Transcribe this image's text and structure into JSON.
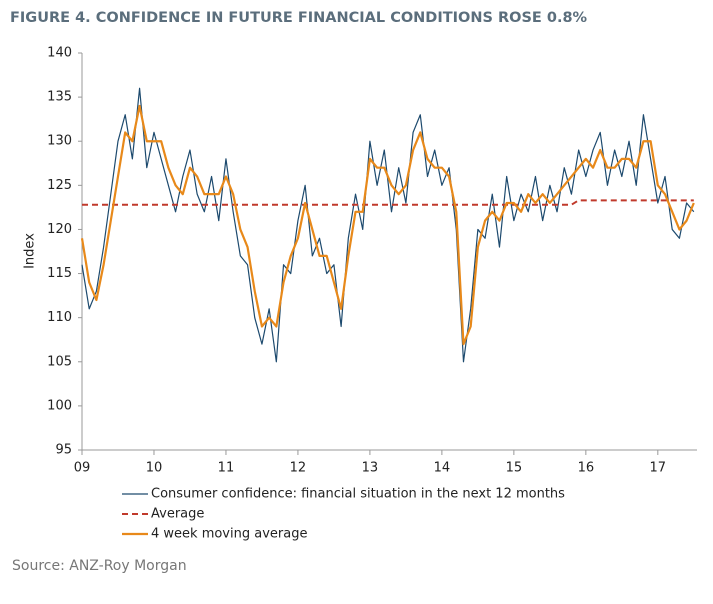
{
  "chart_data": {
    "type": "line",
    "title": "FIGURE 4. CONFIDENCE IN FUTURE FINANCIAL CONDITIONS ROSE 0.8%",
    "y_label": "Index",
    "source": "Source: ANZ-Roy Morgan",
    "x": [
      2009.0,
      2009.1,
      2009.2,
      2009.3,
      2009.4,
      2009.5,
      2009.6,
      2009.7,
      2009.8,
      2009.9,
      2010.0,
      2010.1,
      2010.2,
      2010.3,
      2010.4,
      2010.5,
      2010.6,
      2010.7,
      2010.8,
      2010.9,
      2011.0,
      2011.1,
      2011.2,
      2011.3,
      2011.4,
      2011.5,
      2011.6,
      2011.7,
      2011.8,
      2011.9,
      2012.0,
      2012.1,
      2012.2,
      2012.3,
      2012.4,
      2012.5,
      2012.6,
      2012.7,
      2012.8,
      2012.9,
      2013.0,
      2013.1,
      2013.2,
      2013.3,
      2013.4,
      2013.5,
      2013.6,
      2013.7,
      2013.8,
      2013.9,
      2014.0,
      2014.1,
      2014.2,
      2014.3,
      2014.4,
      2014.5,
      2014.6,
      2014.7,
      2014.8,
      2014.9,
      2015.0,
      2015.1,
      2015.2,
      2015.3,
      2015.4,
      2015.5,
      2015.6,
      2015.7,
      2015.8,
      2015.9,
      2016.0,
      2016.1,
      2016.2,
      2016.3,
      2016.4,
      2016.5,
      2016.6,
      2016.7,
      2016.8,
      2016.9,
      2017.0,
      2017.1,
      2017.2,
      2017.3,
      2017.4,
      2017.5
    ],
    "series": [
      {
        "name": "Consumer confidence: financial situation in the next 12 months",
        "color": "#1d4a6e",
        "dash": false,
        "width": 1.2,
        "values": [
          116,
          111,
          113,
          118,
          124,
          130,
          133,
          128,
          136,
          127,
          131,
          128,
          125,
          122,
          126,
          129,
          124,
          122,
          126,
          121,
          128,
          122,
          117,
          116,
          110,
          107,
          111,
          105,
          116,
          115,
          121,
          125,
          117,
          119,
          115,
          116,
          109,
          119,
          124,
          120,
          130,
          125,
          129,
          122,
          127,
          123,
          131,
          133,
          126,
          129,
          125,
          127,
          120,
          105,
          111,
          120,
          119,
          124,
          118,
          126,
          121,
          124,
          122,
          126,
          121,
          125,
          122,
          127,
          124,
          129,
          126,
          129,
          131,
          125,
          129,
          126,
          130,
          125,
          133,
          128,
          123,
          126,
          120,
          119,
          123,
          122
        ]
      },
      {
        "name": "Average",
        "color": "#c0392b",
        "dash": true,
        "width": 2,
        "values": [
          122.8,
          122.8,
          122.8,
          122.8,
          122.8,
          122.8,
          122.8,
          122.8,
          122.8,
          122.8,
          122.8,
          122.8,
          122.8,
          122.8,
          122.8,
          122.8,
          122.8,
          122.8,
          122.8,
          122.8,
          122.8,
          122.8,
          122.8,
          122.8,
          122.8,
          122.8,
          122.8,
          122.8,
          122.8,
          122.8,
          122.8,
          122.8,
          122.8,
          122.8,
          122.8,
          122.8,
          122.8,
          122.8,
          122.8,
          122.8,
          122.8,
          122.8,
          122.8,
          122.8,
          122.8,
          122.8,
          122.8,
          122.8,
          122.8,
          122.8,
          122.8,
          122.8,
          122.8,
          122.8,
          122.8,
          122.8,
          122.8,
          122.8,
          122.8,
          122.8,
          122.8,
          122.8,
          122.8,
          122.8,
          122.8,
          122.8,
          122.8,
          122.8,
          122.8,
          123.3,
          123.3,
          123.3,
          123.3,
          123.3,
          123.3,
          123.3,
          123.3,
          123.3,
          123.3,
          123.3,
          123.3,
          123.3,
          123.3,
          123.3,
          123.3,
          123.3
        ]
      },
      {
        "name": "4 week moving average",
        "color": "#e8891a",
        "dash": false,
        "width": 2.2,
        "values": [
          119,
          114,
          112,
          116,
          121,
          126,
          131,
          130,
          134,
          130,
          130,
          130,
          127,
          125,
          124,
          127,
          126,
          124,
          124,
          124,
          126,
          124,
          120,
          118,
          113,
          109,
          110,
          109,
          114,
          117,
          119,
          123,
          120,
          117,
          117,
          114,
          111,
          117,
          122,
          122,
          128,
          127,
          127,
          125,
          124,
          125,
          129,
          131,
          128,
          127,
          127,
          126,
          122,
          107,
          109,
          118,
          121,
          122,
          121,
          123,
          123,
          122,
          124,
          123,
          124,
          123,
          124,
          125,
          126,
          127,
          128,
          127,
          129,
          127,
          127,
          128,
          128,
          127,
          130,
          130,
          125,
          124,
          122,
          120,
          121,
          123
        ]
      }
    ],
    "xlim": [
      2009,
      2017.6
    ],
    "xticks": [
      {
        "value": 2009,
        "label": "09"
      },
      {
        "value": 2010,
        "label": "10"
      },
      {
        "value": 2011,
        "label": "11"
      },
      {
        "value": 2012,
        "label": "12"
      },
      {
        "value": 2013,
        "label": "13"
      },
      {
        "value": 2014,
        "label": "14"
      },
      {
        "value": 2015,
        "label": "15"
      },
      {
        "value": 2016,
        "label": "16"
      },
      {
        "value": 2017,
        "label": "17"
      }
    ],
    "ylim": [
      95,
      140
    ],
    "yticks": [
      95,
      100,
      105,
      110,
      115,
      120,
      125,
      130,
      135,
      140
    ],
    "grid": false
  }
}
